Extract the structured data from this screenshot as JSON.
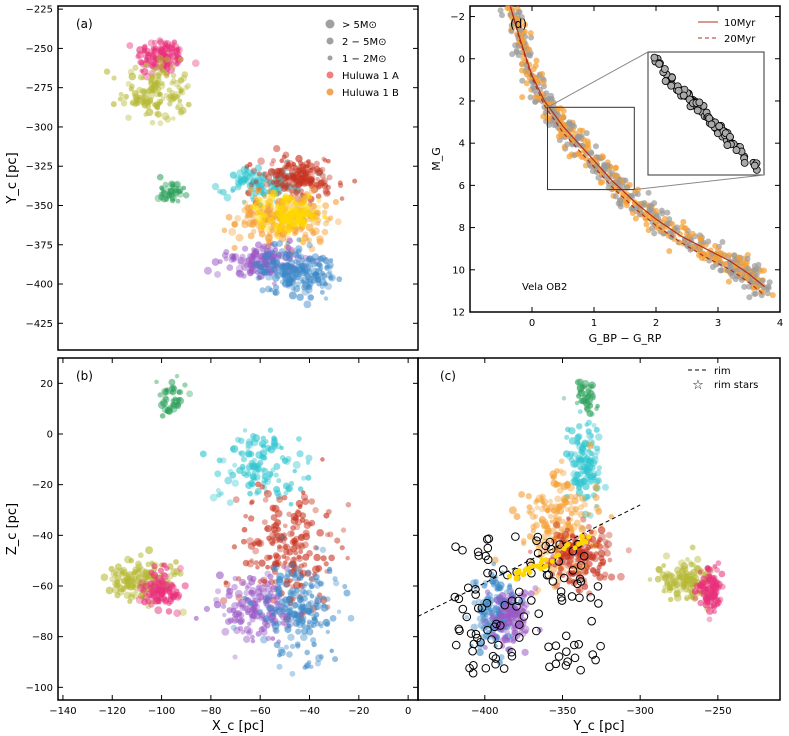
{
  "chart_data": [
    {
      "panel": "a",
      "type": "scatter",
      "panel_label": "(a)",
      "xlabel": "",
      "ylabel": "Y_c [pc]",
      "xlim": [
        -142,
        4
      ],
      "ylim": [
        -442,
        -223
      ],
      "y_ticks": [
        -225,
        -250,
        -275,
        -300,
        -325,
        -350,
        -375,
        -400,
        -425
      ],
      "legend": {
        "position": "top-right",
        "entries": [
          {
            "label": "> 5M⊙",
            "marker": "large-gray-circle",
            "color": "#a0a0a0"
          },
          {
            "label": "2 − 5M⊙",
            "marker": "medium-gray-circle",
            "color": "#a0a0a0"
          },
          {
            "label": "1 − 2M⊙",
            "marker": "small-gray-circle",
            "color": "#a0a0a0"
          },
          {
            "label": "Huluwa 1 A",
            "marker": "circle",
            "color": "#f08080"
          },
          {
            "label": "Huluwa 1 B",
            "marker": "circle",
            "color": "#f5a35a"
          }
        ]
      },
      "clusters": [
        {
          "color": "#e8307a",
          "center": [
            -100,
            -255
          ],
          "spread": [
            5,
            6
          ],
          "n": 120
        },
        {
          "color": "#b5b833",
          "center": [
            -102,
            -278
          ],
          "spread": [
            7,
            9
          ],
          "n": 140
        },
        {
          "color": "#2ec5cf",
          "center": [
            -60,
            -336
          ],
          "spread": [
            8,
            5
          ],
          "n": 110
        },
        {
          "color": "#2ca05a",
          "center": [
            -96,
            -341
          ],
          "spread": [
            3,
            3
          ],
          "n": 40
        },
        {
          "color": "#c8321e",
          "center": [
            -45,
            -333
          ],
          "spread": [
            8,
            8
          ],
          "n": 160
        },
        {
          "color": "#f5a035",
          "center": [
            -50,
            -358
          ],
          "spread": [
            10,
            8
          ],
          "n": 220
        },
        {
          "color": "#ffd700",
          "center": [
            -48,
            -356
          ],
          "spread": [
            6,
            6
          ],
          "n": 140
        },
        {
          "color": "#9b59c6",
          "center": [
            -60,
            -385
          ],
          "spread": [
            8,
            5
          ],
          "n": 140
        },
        {
          "color": "#3a88c7",
          "center": [
            -45,
            -392
          ],
          "spread": [
            8,
            7
          ],
          "n": 180
        }
      ]
    },
    {
      "panel": "b",
      "type": "scatter",
      "panel_label": "(b)",
      "xlabel": "X_c [pc]",
      "ylabel": "Z_c [pc]",
      "xlim": [
        -142,
        4
      ],
      "ylim": [
        -105,
        30
      ],
      "x_ticks": [
        -140,
        -120,
        -100,
        -80,
        -60,
        -40,
        -20,
        0
      ],
      "y_ticks": [
        20,
        0,
        -20,
        -40,
        -60,
        -80,
        -100
      ],
      "clusters": [
        {
          "color": "#2ca05a",
          "center": [
            -96,
            15
          ],
          "spread": [
            3,
            3
          ],
          "n": 40
        },
        {
          "color": "#2ec5cf",
          "center": [
            -60,
            -12
          ],
          "spread": [
            10,
            8
          ],
          "n": 120
        },
        {
          "color": "#c8321e",
          "center": [
            -48,
            -45
          ],
          "spread": [
            10,
            12
          ],
          "n": 200
        },
        {
          "color": "#b5b833",
          "center": [
            -108,
            -58
          ],
          "spread": [
            7,
            4
          ],
          "n": 130
        },
        {
          "color": "#e8307a",
          "center": [
            -100,
            -62
          ],
          "spread": [
            4,
            4
          ],
          "n": 100
        },
        {
          "color": "#9b59c6",
          "center": [
            -62,
            -70
          ],
          "spread": [
            7,
            6
          ],
          "n": 150
        },
        {
          "color": "#3a88c7",
          "center": [
            -44,
            -68
          ],
          "spread": [
            8,
            9
          ],
          "n": 180
        }
      ]
    },
    {
      "panel": "c",
      "type": "scatter",
      "panel_label": "(c)",
      "xlabel": "Y_c [pc]",
      "ylabel": "",
      "xlim": [
        -443,
        -210
      ],
      "ylim": [
        -105,
        30
      ],
      "x_ticks": [
        -400,
        -350,
        -300,
        -250
      ],
      "legend": {
        "position": "top-right",
        "entries": [
          {
            "label": "rim",
            "marker": "dashed-line",
            "color": "#000000"
          },
          {
            "label": "rim stars",
            "marker": "star",
            "color": "#ffd700"
          }
        ]
      },
      "rim_line": {
        "x": [
          -443,
          -300
        ],
        "y": [
          -72,
          -28
        ]
      },
      "clusters": [
        {
          "color": "#2ca05a",
          "center": [
            -335,
            15
          ],
          "spread": [
            4,
            3
          ],
          "n": 40
        },
        {
          "color": "#2ec5cf",
          "center": [
            -335,
            -12
          ],
          "spread": [
            5,
            8
          ],
          "n": 120
        },
        {
          "color": "#f5a035",
          "center": [
            -350,
            -35
          ],
          "spread": [
            12,
            10
          ],
          "n": 200
        },
        {
          "color": "#c8321e",
          "center": [
            -340,
            -48
          ],
          "spread": [
            10,
            6
          ],
          "n": 160
        },
        {
          "color": "#3a88c7",
          "center": [
            -393,
            -70
          ],
          "spread": [
            7,
            8
          ],
          "n": 140
        },
        {
          "color": "#9b59c6",
          "center": [
            -383,
            -72
          ],
          "spread": [
            6,
            6
          ],
          "n": 120
        },
        {
          "color": "#b5b833",
          "center": [
            -272,
            -58
          ],
          "spread": [
            8,
            4
          ],
          "n": 120
        },
        {
          "color": "#e8307a",
          "center": [
            -255,
            -62
          ],
          "spread": [
            4,
            4
          ],
          "n": 100
        }
      ],
      "rim_stars": {
        "x": [
          -385,
          -332
        ],
        "y": [
          -58,
          -40
        ],
        "n": 40,
        "color": "#ffd700"
      }
    },
    {
      "panel": "d",
      "type": "scatter",
      "panel_label": "(d)",
      "xlabel": "G_BP − G_RP",
      "ylabel": "M_G",
      "xlim": [
        -1,
        4
      ],
      "ylim": [
        12,
        -2.5
      ],
      "x_ticks": [
        0,
        1,
        2,
        3,
        4
      ],
      "y_ticks": [
        -2,
        0,
        2,
        4,
        6,
        8,
        10,
        12
      ],
      "annotation": "Vela OB2",
      "legend": {
        "position": "top-right",
        "entries": [
          {
            "label": "10Myr",
            "style": "solid",
            "color": "#b03020"
          },
          {
            "label": "20Myr",
            "style": "dashed",
            "color": "#b03020"
          }
        ]
      },
      "isochrone_10myr": {
        "x": [
          -0.35,
          -0.2,
          0.0,
          0.2,
          0.5,
          0.9,
          1.3,
          1.7,
          2.0,
          2.4,
          2.8,
          3.2,
          3.5,
          3.75
        ],
        "y": [
          -2.5,
          -1.0,
          0.8,
          2.0,
          3.2,
          4.5,
          5.8,
          6.9,
          7.6,
          8.4,
          9.0,
          9.6,
          10.2,
          10.8
        ]
      },
      "isochrone_20myr": {
        "x": [
          -0.35,
          -0.2,
          0.0,
          0.2,
          0.5,
          0.9,
          1.3,
          1.7,
          2.0,
          2.4,
          2.8,
          3.2,
          3.5,
          3.75
        ],
        "y": [
          -2.5,
          -0.9,
          0.9,
          2.2,
          3.5,
          4.8,
          6.1,
          7.2,
          7.9,
          8.7,
          9.4,
          10.0,
          10.6,
          11.2
        ]
      },
      "inset_box": {
        "x": [
          0.25,
          1.65
        ],
        "y": [
          2.3,
          6.2
        ]
      }
    }
  ]
}
